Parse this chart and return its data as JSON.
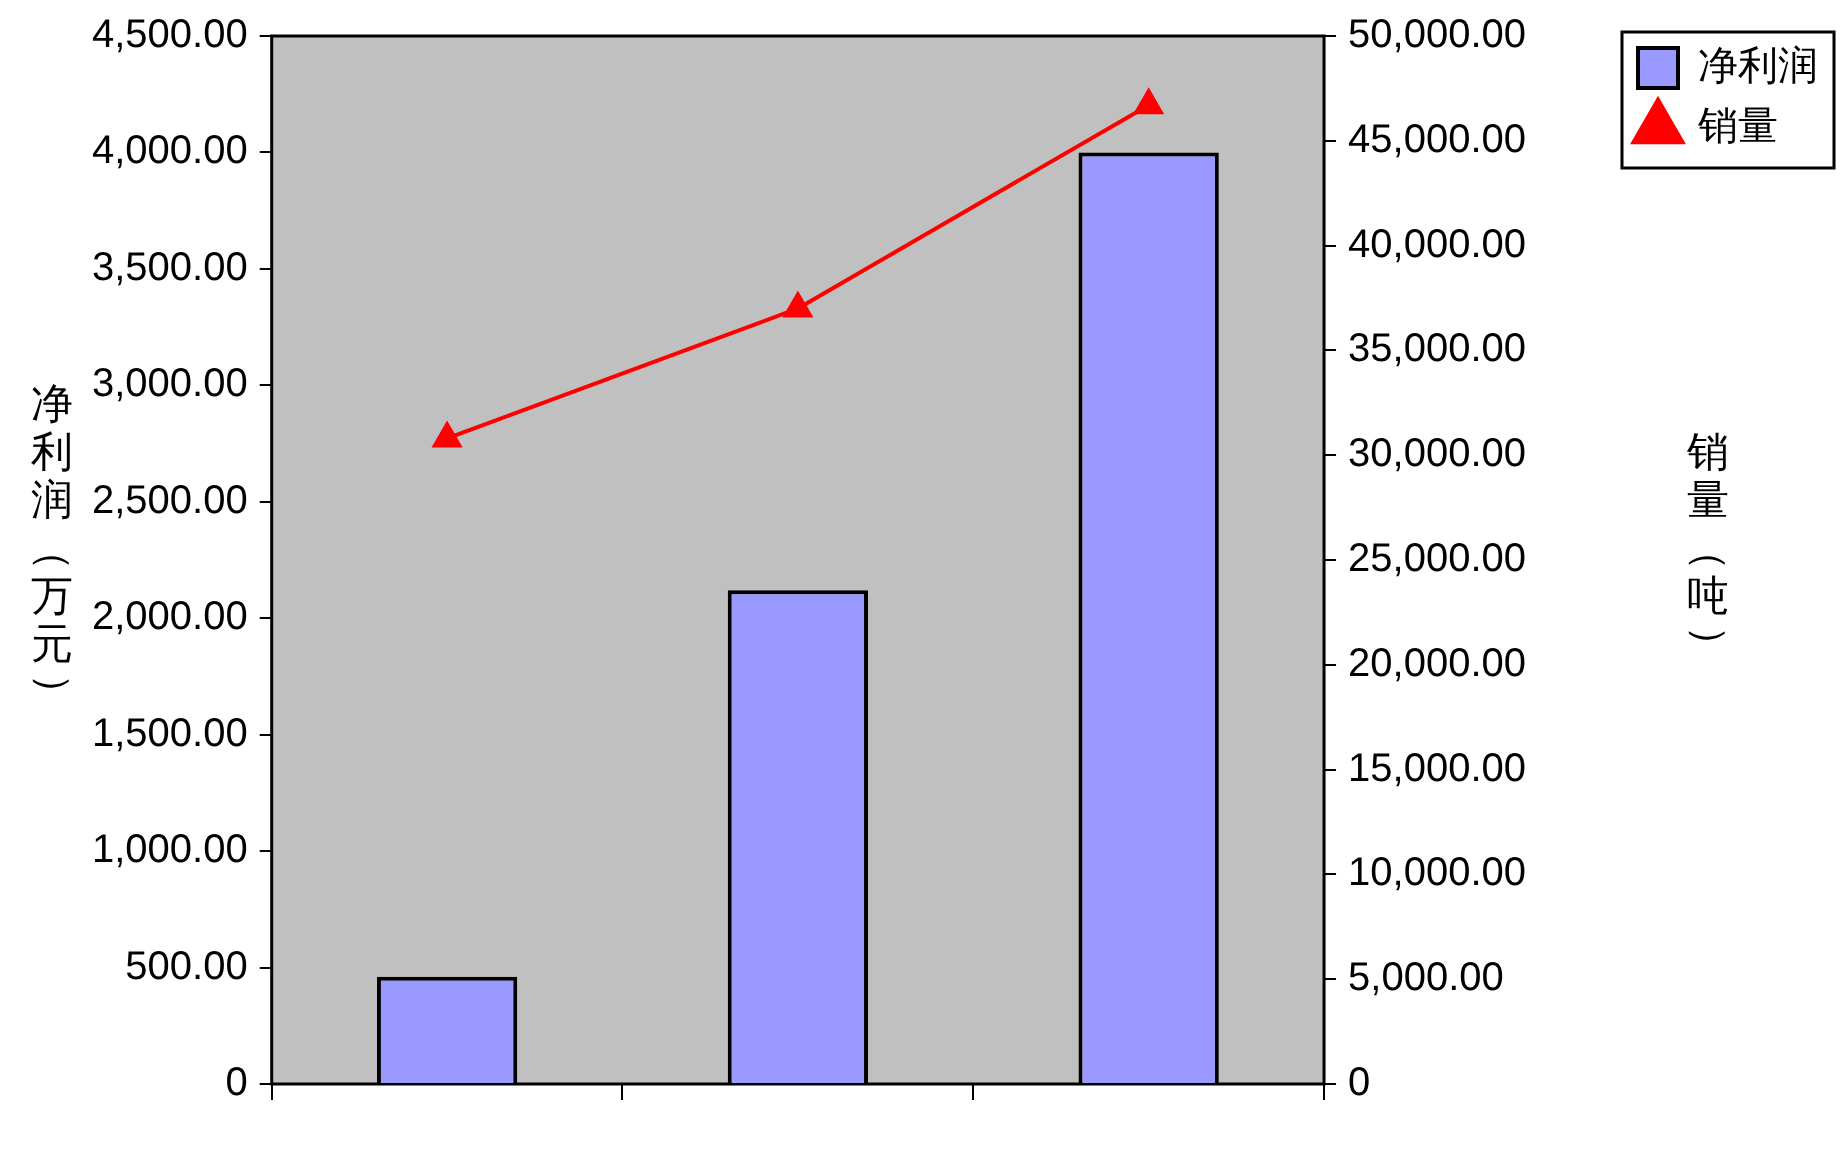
{
  "chart_data": {
    "type": "bar",
    "ylabel": "净利润（万元）",
    "y2label": "销量（吨）",
    "categories": [
      null,
      null,
      null
    ],
    "series": [
      {
        "name": "净利润",
        "color": "#9999ff",
        "values": [
          460,
          2120,
          4000
        ]
      },
      {
        "name": "销量",
        "type": "line",
        "axis": "y2",
        "color": "#ff0000",
        "values": [
          30800,
          37000,
          46700
        ]
      }
    ],
    "ylim": [
      0,
      4500
    ],
    "yticks": [
      {
        "value": 0,
        "label": "0"
      },
      {
        "value": 500,
        "label": "500.00"
      },
      {
        "value": 1000,
        "label": "1,000.00"
      },
      {
        "value": 1500,
        "label": "1,500.00"
      },
      {
        "value": 2000,
        "label": "2,000.00"
      },
      {
        "value": 2500,
        "label": "2,500.00"
      },
      {
        "value": 3000,
        "label": "3,000.00"
      },
      {
        "value": 3500,
        "label": "3,500.00"
      },
      {
        "value": 4000,
        "label": "4,000.00"
      },
      {
        "value": 4500,
        "label": "4,500.00"
      }
    ],
    "y2lim": [
      0,
      50000
    ],
    "y2ticks": [
      {
        "value": 0,
        "label": "0"
      },
      {
        "value": 5000,
        "label": "5,000.00"
      },
      {
        "value": 10000,
        "label": "10,000.00"
      },
      {
        "value": 15000,
        "label": "15,000.00"
      },
      {
        "value": 20000,
        "label": "20,000.00"
      },
      {
        "value": 25000,
        "label": "25,000.00"
      },
      {
        "value": 30000,
        "label": "30,000.00"
      },
      {
        "value": 35000,
        "label": "35,000.00"
      },
      {
        "value": 40000,
        "label": "40,000.00"
      },
      {
        "value": 45000,
        "label": "45,000.00"
      },
      {
        "value": 50000,
        "label": "50,000.00"
      }
    ],
    "grid": false,
    "legend": "top right",
    "marker": "triangle",
    "line_style": "solid"
  }
}
